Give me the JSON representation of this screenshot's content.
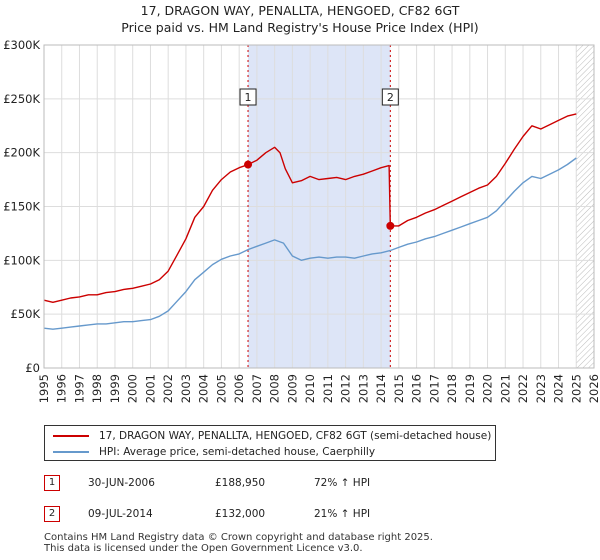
{
  "chart_data": {
    "type": "line",
    "title": "17, DRAGON WAY, PENALLTA, HENGOED, CF82 6GT",
    "subtitle": "Price paid vs. HM Land Registry's House Price Index (HPI)",
    "xlim": [
      1995,
      2026
    ],
    "ylim": [
      0,
      300000
    ],
    "yticks": [
      0,
      50000,
      100000,
      150000,
      200000,
      250000,
      300000
    ],
    "ytick_labels": [
      "£0",
      "£50K",
      "£100K",
      "£150K",
      "£200K",
      "£250K",
      "£300K"
    ],
    "xticks": [
      1995,
      1996,
      1997,
      1998,
      1999,
      2000,
      2001,
      2002,
      2003,
      2004,
      2005,
      2006,
      2007,
      2008,
      2009,
      2010,
      2011,
      2012,
      2013,
      2014,
      2015,
      2016,
      2017,
      2018,
      2019,
      2020,
      2021,
      2022,
      2023,
      2024,
      2025,
      2026
    ],
    "grid": true,
    "shaded_period": [
      2006.5,
      2014.52
    ],
    "hatched_future_from": 2025.0,
    "series": [
      {
        "name": "17, DRAGON WAY, PENALLTA, HENGOED, CF82 6GT (semi-detached house)",
        "color": "#cc0000",
        "x": [
          1995.0,
          1995.5,
          1996.0,
          1996.5,
          1997.0,
          1997.5,
          1998.0,
          1998.5,
          1999.0,
          1999.5,
          2000.0,
          2000.5,
          2001.0,
          2001.5,
          2002.0,
          2002.5,
          2003.0,
          2003.5,
          2004.0,
          2004.5,
          2005.0,
          2005.5,
          2006.0,
          2006.5,
          2007.0,
          2007.5,
          2008.0,
          2008.3,
          2008.6,
          2009.0,
          2009.5,
          2010.0,
          2010.5,
          2011.0,
          2011.5,
          2012.0,
          2012.5,
          2013.0,
          2013.5,
          2014.0,
          2014.45,
          2014.52,
          2015.0,
          2015.5,
          2016.0,
          2016.5,
          2017.0,
          2017.5,
          2018.0,
          2018.5,
          2019.0,
          2019.5,
          2020.0,
          2020.5,
          2021.0,
          2021.5,
          2022.0,
          2022.5,
          2023.0,
          2023.5,
          2024.0,
          2024.5,
          2025.0
        ],
        "values": [
          63000,
          61000,
          63000,
          65000,
          66000,
          68000,
          68000,
          70000,
          71000,
          73000,
          74000,
          76000,
          78000,
          82000,
          90000,
          105000,
          120000,
          140000,
          150000,
          165000,
          175000,
          182000,
          186000,
          188950,
          193000,
          200000,
          205000,
          200000,
          185000,
          172000,
          174000,
          178000,
          175000,
          176000,
          177000,
          175000,
          178000,
          180000,
          183000,
          186000,
          188000,
          132000,
          132000,
          137000,
          140000,
          144000,
          147000,
          151000,
          155000,
          159000,
          163000,
          167000,
          170000,
          178000,
          190000,
          203000,
          215000,
          225000,
          222000,
          226000,
          230000,
          234000,
          236000
        ]
      },
      {
        "name": "HPI: Average price, semi-detached house, Caerphilly",
        "color": "#6699cc",
        "x": [
          1995.0,
          1995.5,
          1996.0,
          1996.5,
          1997.0,
          1997.5,
          1998.0,
          1998.5,
          1999.0,
          1999.5,
          2000.0,
          2000.5,
          2001.0,
          2001.5,
          2002.0,
          2002.5,
          2003.0,
          2003.5,
          2004.0,
          2004.5,
          2005.0,
          2005.5,
          2006.0,
          2006.5,
          2007.0,
          2007.5,
          2008.0,
          2008.5,
          2009.0,
          2009.5,
          2010.0,
          2010.5,
          2011.0,
          2011.5,
          2012.0,
          2012.5,
          2013.0,
          2013.5,
          2014.0,
          2014.5,
          2015.0,
          2015.5,
          2016.0,
          2016.5,
          2017.0,
          2017.5,
          2018.0,
          2018.5,
          2019.0,
          2019.5,
          2020.0,
          2020.5,
          2021.0,
          2021.5,
          2022.0,
          2022.5,
          2023.0,
          2023.5,
          2024.0,
          2024.5,
          2025.0
        ],
        "values": [
          37000,
          36000,
          37000,
          38000,
          39000,
          40000,
          41000,
          41000,
          42000,
          43000,
          43000,
          44000,
          45000,
          48000,
          53000,
          62000,
          71000,
          82000,
          89000,
          96000,
          101000,
          104000,
          106000,
          110000,
          113000,
          116000,
          119000,
          116000,
          104000,
          100000,
          102000,
          103000,
          102000,
          103000,
          103000,
          102000,
          104000,
          106000,
          107000,
          109000,
          112000,
          115000,
          117000,
          120000,
          122000,
          125000,
          128000,
          131000,
          134000,
          137000,
          140000,
          146000,
          155000,
          164000,
          172000,
          178000,
          176000,
          180000,
          184000,
          189000,
          195000
        ]
      }
    ],
    "annotations": [
      {
        "label": "1",
        "x": 2006.5,
        "y": 188950
      },
      {
        "label": "2",
        "x": 2014.52,
        "y": 132000
      }
    ]
  },
  "legend": {
    "property_label": "17, DRAGON WAY, PENALLTA, HENGOED, CF82 6GT (semi-detached house)",
    "hpi_label": "HPI: Average price, semi-detached house, Caerphilly"
  },
  "transactions": [
    {
      "num": "1",
      "date": "30-JUN-2006",
      "price": "£188,950",
      "hpi": "72% ↑ HPI"
    },
    {
      "num": "2",
      "date": "09-JUL-2014",
      "price": "£132,000",
      "hpi": "21% ↑ HPI"
    }
  ],
  "footer": {
    "line1": "Contains HM Land Registry data © Crown copyright and database right 2025.",
    "line2": "This data is licensed under the Open Government Licence v3.0."
  },
  "colors": {
    "property": "#cc0000",
    "hpi": "#6699cc",
    "shade": "#dde5f7",
    "grid": "#dddddd"
  }
}
